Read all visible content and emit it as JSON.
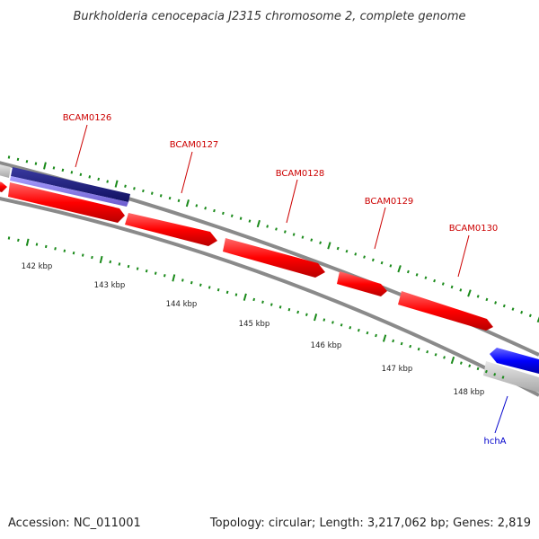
{
  "title": "Burkholderia cenocepacia J2315 chromosome 2, complete genome",
  "footer": {
    "accession": "Accession: NC_011001",
    "summary": "Topology: circular; Length: 3,217,062 bp; Genes: 2,819"
  },
  "colors": {
    "forward_gene": "#ff0000",
    "reverse_gene": "#0000ff",
    "gene_label_forward": "#cc0000",
    "gene_label_reverse": "#0000cc",
    "tick": "#1a8a1a",
    "backbone": "#888888"
  },
  "kbp_labels": [
    "142 kbp",
    "143 kbp",
    "144 kbp",
    "145 kbp",
    "146 kbp",
    "147 kbp",
    "148 kbp"
  ],
  "gene_labels": [
    {
      "name": "BCAM0126",
      "strand": "forward"
    },
    {
      "name": "BCAM0127",
      "strand": "forward"
    },
    {
      "name": "BCAM0128",
      "strand": "forward"
    },
    {
      "name": "BCAM0129",
      "strand": "forward"
    },
    {
      "name": "BCAM0130",
      "strand": "forward"
    },
    {
      "name": "hchA",
      "strand": "reverse"
    }
  ]
}
